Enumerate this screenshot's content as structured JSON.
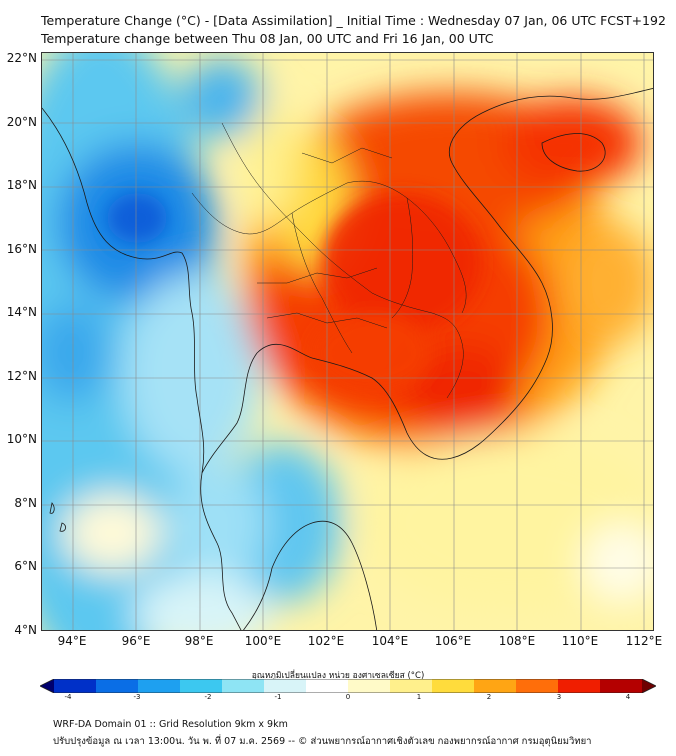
{
  "title_line1": "Temperature Change (°C) - [Data Assimilation] _ Initial Time : Wednesday 07 Jan, 06 UTC FCST+192",
  "title_line2": "Temperature change between Thu 08 Jan, 00 UTC and Fri 16 Jan, 00 UTC",
  "lat_labels": [
    "22°N",
    "20°N",
    "18°N",
    "16°N",
    "14°N",
    "12°N",
    "10°N",
    "8°N",
    "6°N",
    "4°N"
  ],
  "lon_labels": [
    "94°E",
    "96°E",
    "98°E",
    "100°E",
    "102°E",
    "104°E",
    "106°E",
    "108°E",
    "110°E",
    "112°E"
  ],
  "colorbar": {
    "label": "อุณหภูมิเปลี่ยนแปลง หน่วย องศาเซลเซียส (°C)",
    "ticks": [
      "-4",
      "-3",
      "-2",
      "-1",
      "0",
      "1",
      "2",
      "3",
      "4"
    ],
    "colors": [
      "#00006e",
      "#0030c8",
      "#0a6ee6",
      "#1ea0f0",
      "#3cc8f0",
      "#8ee4f4",
      "#d8f4f8",
      "#ffffff",
      "#fffac8",
      "#fff08c",
      "#ffdc3c",
      "#ffa514",
      "#ff6e0a",
      "#f01e00",
      "#b40000",
      "#6e0000"
    ]
  },
  "footer_line1": "WRF-DA Domain 01 :: Grid Resolution 9km x 9km",
  "footer_line2": "ปรับปรุงข้อมูล ณ เวลา 13:00น. วัน พ. ที่ 07 ม.ค. 2569 -- © ส่วนพยากรณ์อากาศเชิงตัวเลข กองพยากรณ์อากาศ กรมอุตุนิยมวิทยา"
}
